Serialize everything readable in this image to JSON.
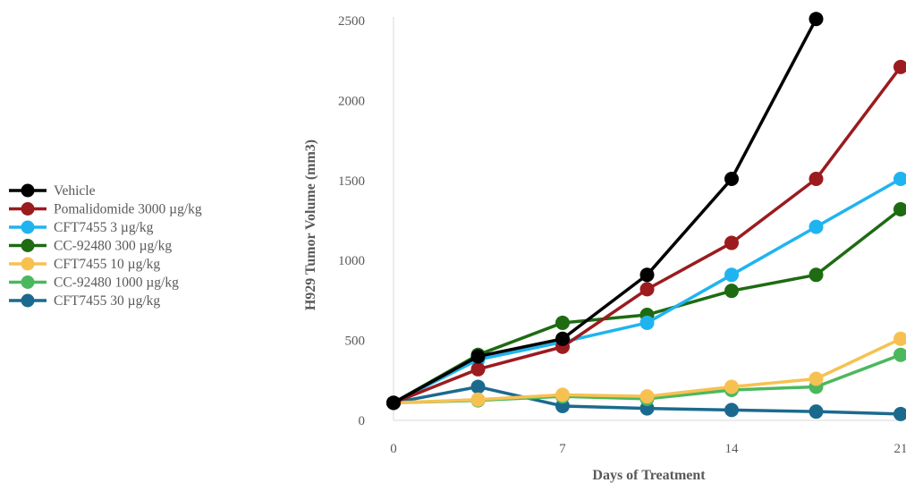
{
  "chart_data": {
    "type": "line",
    "xlabel": "Days of Treatment",
    "ylabel": "H929 Tumor Volume (mm3)",
    "xlim": [
      0,
      21
    ],
    "ylim": [
      0,
      2500
    ],
    "x_ticks": [
      0,
      7,
      14,
      21
    ],
    "y_ticks": [
      0,
      500,
      1000,
      1500,
      2000,
      2500
    ],
    "grid": false,
    "legend_position": "left",
    "series": [
      {
        "name": "Vehicle",
        "color": "#000000",
        "x": [
          0,
          3.5,
          7,
          10.5,
          14,
          17.5
        ],
        "y": [
          110,
          400,
          510,
          910,
          1510,
          2510
        ]
      },
      {
        "name": "Pomalidomide 3000 µg/kg",
        "color": "#9b1b1f",
        "x": [
          0,
          3.5,
          7,
          10.5,
          14,
          17.5,
          21
        ],
        "y": [
          110,
          320,
          460,
          820,
          1110,
          1510,
          2210
        ]
      },
      {
        "name": "CFT7455 3 µg/kg",
        "color": "#1fb4f0",
        "x": [
          0,
          3.5,
          7,
          10.5,
          14,
          17.5,
          21
        ],
        "y": [
          110,
          380,
          490,
          610,
          910,
          1210,
          1510
        ]
      },
      {
        "name": "CC-92480 300 µg/kg",
        "color": "#1e6b12",
        "x": [
          0,
          3.5,
          7,
          10.5,
          14,
          17.5,
          21
        ],
        "y": [
          110,
          410,
          610,
          660,
          810,
          910,
          1320
        ]
      },
      {
        "name": "CFT7455 10 µg/kg",
        "color": "#f7c152",
        "x": [
          0,
          3.5,
          7,
          10.5,
          14,
          17.5,
          21
        ],
        "y": [
          110,
          130,
          160,
          150,
          210,
          260,
          510
        ]
      },
      {
        "name": "CC-92480 1000 µg/kg",
        "color": "#4cb85e",
        "x": [
          0,
          3.5,
          7,
          10.5,
          14,
          17.5,
          21
        ],
        "y": [
          110,
          125,
          150,
          135,
          190,
          210,
          410
        ]
      },
      {
        "name": "CFT7455 30 µg/kg",
        "color": "#1b6a8e",
        "x": [
          0,
          3.5,
          7,
          10.5,
          14,
          17.5,
          21
        ],
        "y": [
          110,
          210,
          90,
          75,
          65,
          55,
          40
        ]
      }
    ]
  }
}
